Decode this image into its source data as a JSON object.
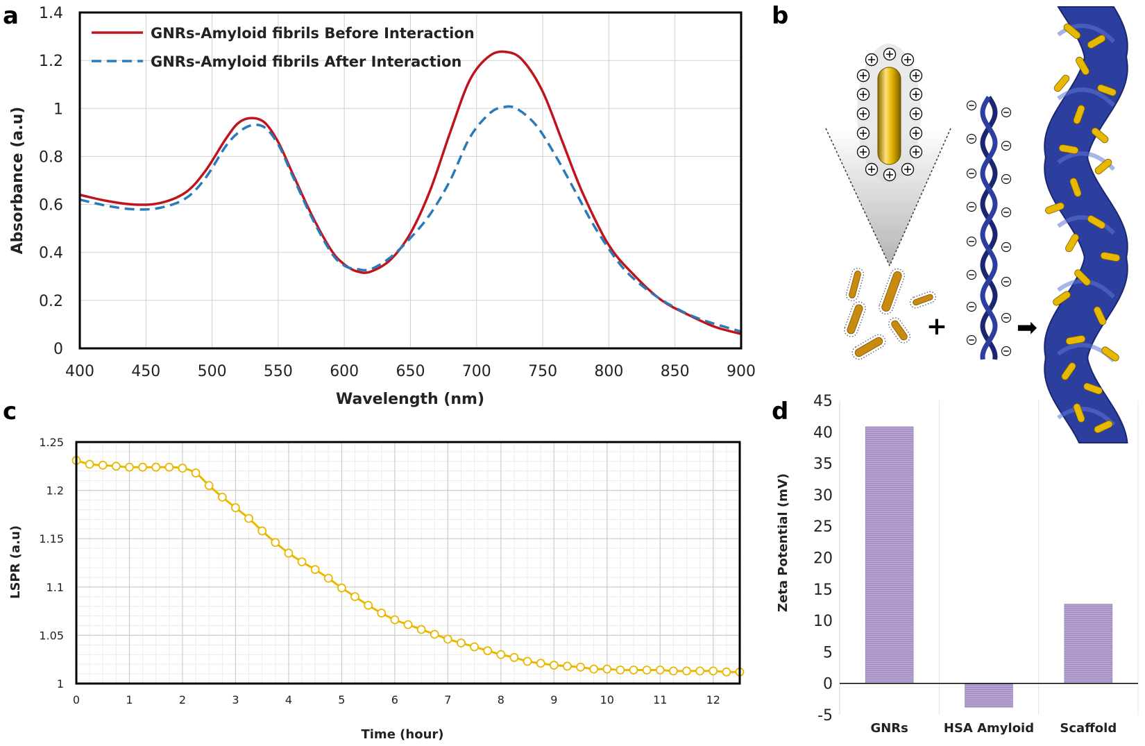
{
  "panels": {
    "a": "a",
    "b": "b",
    "c": "c",
    "d": "d"
  },
  "chart_data": [
    {
      "id": "a",
      "type": "line",
      "title": "",
      "xlabel": "Wavelength (nm)",
      "ylabel": "Absorbance (a.u)",
      "xlim": [
        400,
        900
      ],
      "ylim": [
        0,
        1.4
      ],
      "xticks": [
        400,
        450,
        500,
        550,
        600,
        650,
        700,
        750,
        800,
        850,
        900
      ],
      "yticks": [
        0,
        0.2,
        0.4,
        0.6,
        0.8,
        1,
        1.2,
        1.4
      ],
      "grid": true,
      "legend": "top-left",
      "series": [
        {
          "name": "GNRs-Amyloid fibrils Before Interaction",
          "color": "#c0141c",
          "style": "solid",
          "x": [
            400,
            420,
            440,
            460,
            480,
            495,
            510,
            520,
            530,
            540,
            550,
            560,
            575,
            590,
            600,
            610,
            620,
            635,
            650,
            665,
            680,
            695,
            710,
            723,
            735,
            750,
            765,
            780,
            800,
            820,
            840,
            860,
            880,
            900
          ],
          "y": [
            0.64,
            0.615,
            0.6,
            0.605,
            0.65,
            0.74,
            0.87,
            0.94,
            0.96,
            0.94,
            0.86,
            0.74,
            0.56,
            0.41,
            0.35,
            0.32,
            0.32,
            0.37,
            0.48,
            0.66,
            0.9,
            1.12,
            1.22,
            1.235,
            1.2,
            1.07,
            0.86,
            0.65,
            0.43,
            0.3,
            0.2,
            0.14,
            0.09,
            0.06
          ]
        },
        {
          "name": "GNRs-Amyloid fibrils After Interaction",
          "color": "#2a7ab8",
          "style": "dashed",
          "x": [
            400,
            420,
            440,
            460,
            480,
            495,
            510,
            520,
            530,
            540,
            550,
            560,
            575,
            590,
            600,
            610,
            620,
            635,
            650,
            665,
            680,
            695,
            710,
            720,
            730,
            745,
            760,
            775,
            790,
            810,
            830,
            850,
            870,
            900
          ],
          "y": [
            0.62,
            0.595,
            0.58,
            0.585,
            0.625,
            0.71,
            0.84,
            0.9,
            0.93,
            0.92,
            0.85,
            0.73,
            0.55,
            0.4,
            0.345,
            0.33,
            0.33,
            0.38,
            0.46,
            0.56,
            0.7,
            0.88,
            0.98,
            1.005,
            1.0,
            0.93,
            0.8,
            0.65,
            0.5,
            0.34,
            0.24,
            0.17,
            0.12,
            0.07
          ]
        }
      ]
    },
    {
      "id": "c",
      "type": "line",
      "title": "",
      "xlabel": "Time (hour)",
      "ylabel": "LSPR (a.u)",
      "xlim": [
        0,
        12.5
      ],
      "ylim": [
        1,
        1.25
      ],
      "xticks": [
        0,
        1,
        2,
        3,
        4,
        5,
        6,
        7,
        8,
        9,
        10,
        11,
        12
      ],
      "yticks": [
        1,
        1.05,
        1.1,
        1.15,
        1.2,
        1.25
      ],
      "ytick_labels": [
        "1",
        "1.05",
        "1.1",
        "1.15",
        "1.2",
        "1.25"
      ],
      "grid": true,
      "series": [
        {
          "color": "#e8b800",
          "marker": "circle",
          "x": [
            0,
            0.25,
            0.5,
            0.75,
            1,
            1.25,
            1.5,
            1.75,
            2,
            2.25,
            2.5,
            2.75,
            3,
            3.25,
            3.5,
            3.75,
            4,
            4.25,
            4.5,
            4.75,
            5,
            5.25,
            5.5,
            5.75,
            6,
            6.25,
            6.5,
            6.75,
            7,
            7.25,
            7.5,
            7.75,
            8,
            8.25,
            8.5,
            8.75,
            9,
            9.25,
            9.5,
            9.75,
            10,
            10.25,
            10.5,
            10.75,
            11,
            11.25,
            11.5,
            11.75,
            12,
            12.25,
            12.5
          ],
          "y": [
            1.231,
            1.227,
            1.226,
            1.225,
            1.224,
            1.224,
            1.224,
            1.224,
            1.223,
            1.218,
            1.205,
            1.193,
            1.182,
            1.171,
            1.158,
            1.146,
            1.135,
            1.126,
            1.118,
            1.109,
            1.099,
            1.09,
            1.081,
            1.073,
            1.066,
            1.061,
            1.056,
            1.051,
            1.046,
            1.042,
            1.038,
            1.034,
            1.03,
            1.027,
            1.023,
            1.021,
            1.019,
            1.018,
            1.017,
            1.015,
            1.015,
            1.014,
            1.014,
            1.014,
            1.014,
            1.013,
            1.013,
            1.013,
            1.013,
            1.012,
            1.012
          ]
        }
      ]
    },
    {
      "id": "d",
      "type": "bar",
      "title": "",
      "xlabel": "",
      "ylabel": "Zeta Potential (mV)",
      "categories": [
        "GNRs",
        "HSA Amyloid",
        "Scaffold"
      ],
      "values": [
        40.8,
        -3.8,
        12.6
      ],
      "ylim": [
        -5,
        45
      ],
      "yticks": [
        -5,
        0,
        5,
        10,
        15,
        20,
        25,
        30,
        35,
        40,
        45
      ],
      "bar_color": "#b19ccc",
      "grid": true
    }
  ],
  "schematic": {
    "positive_charge": "⊕",
    "negative_charge": "⊖",
    "plus": "+",
    "arrow": "➡"
  },
  "colors": {
    "gold": "#e6b800",
    "fibril_blue": "#2d3f9e",
    "fibril_dark": "#1a2670"
  }
}
